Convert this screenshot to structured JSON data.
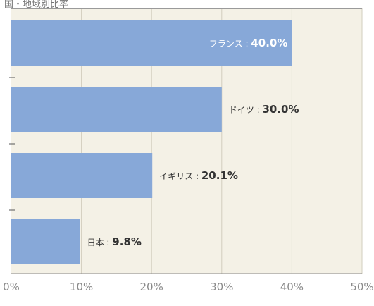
{
  "chart_data": {
    "type": "bar",
    "orientation": "horizontal",
    "title": "国・地域別比率",
    "categories": [
      "フランス",
      "ドイツ",
      "イギリス",
      "日本"
    ],
    "values": [
      40.0,
      30.0,
      20.1,
      9.8
    ],
    "value_labels": [
      "40.0%",
      "30.0%",
      "20.1%",
      "9.8%"
    ],
    "xlim": [
      0,
      50
    ],
    "x_ticks": [
      0,
      10,
      20,
      30,
      40,
      50
    ],
    "x_tick_labels": [
      "0%",
      "10%",
      "20%",
      "30%",
      "40%",
      "50%"
    ],
    "grid": true,
    "legend": "none",
    "colors": {
      "bar": "#87a8d8",
      "plot_background": "#f4f1e6",
      "grid": "#d2cebf",
      "axis": "#888888",
      "label_inside": "#ffffff",
      "label_outside": "#333333"
    }
  }
}
